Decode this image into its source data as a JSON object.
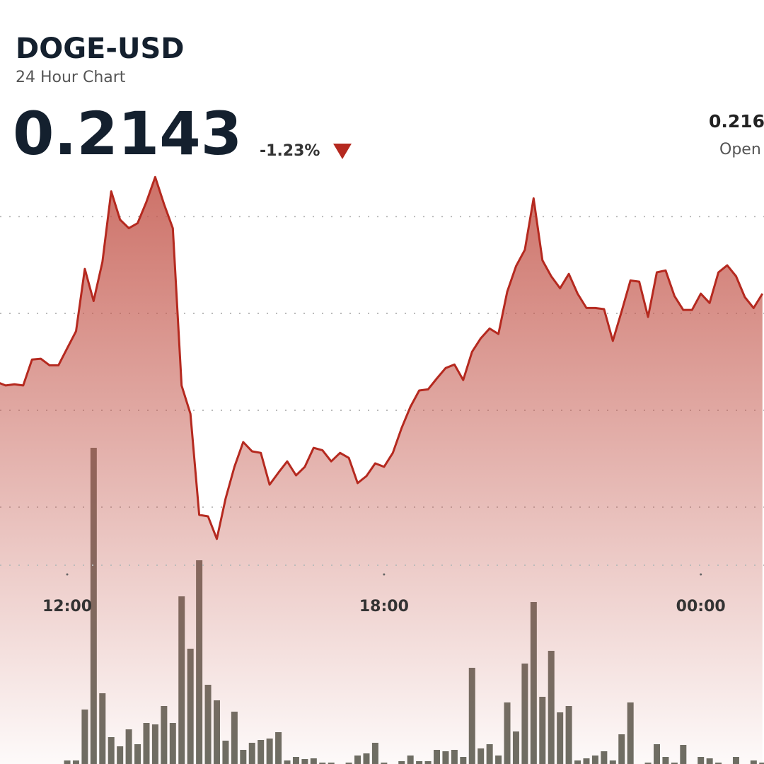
{
  "chart_data": {
    "type": "line",
    "title": "DOGE-USD",
    "subtitle": "24 Hour Chart",
    "price": "0.2143",
    "change": "-1.23%",
    "open_value": "0.216",
    "open_label": "Open",
    "categories": [
      null,
      null,
      null,
      null,
      null,
      null,
      null,
      null,
      "12:00",
      null,
      null,
      null,
      null,
      null,
      null,
      null,
      null,
      null,
      null,
      null,
      null,
      null,
      null,
      null,
      null,
      null,
      null,
      null,
      null,
      null,
      null,
      null,
      null,
      null,
      null,
      null,
      null,
      null,
      null,
      null,
      null,
      null,
      null,
      null,
      "18:00",
      null,
      null,
      null,
      null,
      null,
      null,
      null,
      null,
      null,
      null,
      null,
      null,
      null,
      null,
      null,
      null,
      null,
      null,
      null,
      null,
      null,
      null,
      null,
      null,
      null,
      null,
      null,
      null,
      null,
      null,
      null,
      null,
      null,
      null,
      null,
      "00:00",
      null,
      null,
      null,
      null,
      null,
      null,
      null
    ],
    "series": [
      {
        "color": "#b5291f",
        "values": [
          0.21573,
          0.21564,
          0.21567,
          0.21564,
          0.21631,
          0.21633,
          0.21616,
          0.21616,
          0.2166,
          0.21704,
          0.21865,
          0.21782,
          0.21883,
          0.22065,
          0.21992,
          0.2197,
          0.21983,
          0.22038,
          0.22102,
          0.22032,
          0.2197,
          0.21564,
          0.21491,
          0.2123,
          0.21226,
          0.21168,
          0.21272,
          0.21354,
          0.21418,
          0.21394,
          0.2139,
          0.21308,
          0.21339,
          0.21368,
          0.21332,
          0.21354,
          0.21403,
          0.21397,
          0.21368,
          0.2139,
          0.21377,
          0.21312,
          0.2133,
          0.21363,
          0.21354,
          0.2139,
          0.21454,
          0.21509,
          0.21551,
          0.21554,
          0.21582,
          0.21609,
          0.21618,
          0.21578,
          0.21651,
          0.21686,
          0.21711,
          0.21697,
          0.21806,
          0.21872,
          0.21914,
          0.22047,
          0.21887,
          0.21846,
          0.21815,
          0.21852,
          0.21801,
          0.21764,
          0.21764,
          0.21761,
          0.21679,
          0.21755,
          0.21835,
          0.21832,
          0.21741,
          0.21856,
          0.21861,
          0.21795,
          0.21759,
          0.21759,
          0.21801,
          0.21777,
          0.21856,
          0.21874,
          0.21846,
          0.21792,
          0.21764,
          0.21801
        ]
      },
      {
        "type": "bar",
        "axis": "y2",
        "color": "#6b6e64",
        "values": [
          0,
          0,
          0,
          0,
          0,
          0,
          0,
          0,
          5,
          5,
          77,
          447,
          100,
          38,
          25,
          49,
          28,
          58,
          56,
          82,
          58,
          237,
          163,
          288,
          112,
          90,
          33,
          74,
          20,
          30,
          34,
          36,
          45,
          5,
          10,
          7,
          8,
          2,
          2,
          0,
          2,
          12,
          15,
          30,
          2,
          0,
          4,
          12,
          4,
          4,
          20,
          18,
          20,
          10,
          136,
          22,
          28,
          12,
          87,
          46,
          142,
          229,
          95,
          160,
          73,
          82,
          5,
          8,
          12,
          18,
          5,
          42,
          87,
          0,
          2,
          28,
          10,
          2,
          27,
          0,
          10,
          8,
          2,
          0,
          10,
          0,
          5,
          2
        ]
      }
    ],
    "ylim": [
      0.211,
      0.2215
    ],
    "yticks": [
      0.2125,
      0.215,
      0.2175,
      0.22
    ],
    "y2lim": [
      0,
      450
    ],
    "grid": true
  }
}
